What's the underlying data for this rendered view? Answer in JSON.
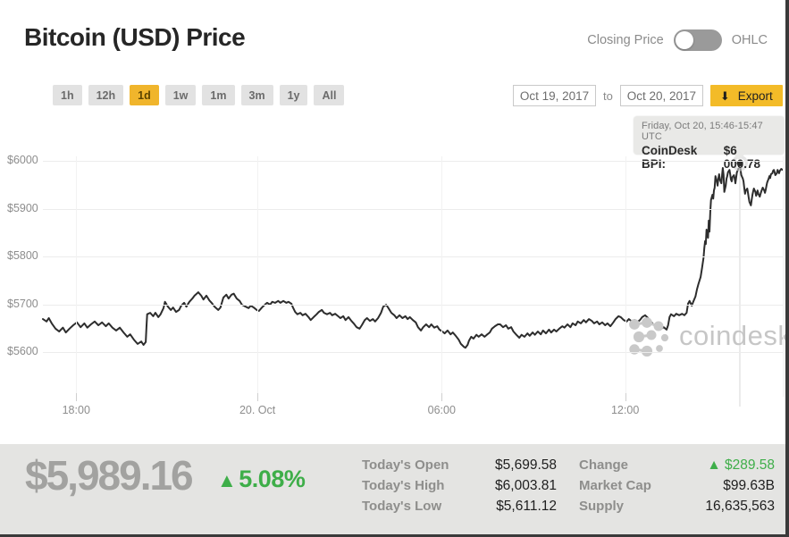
{
  "header": {
    "title": "Bitcoin (USD) Price",
    "toggle": {
      "left_label": "Closing Price",
      "right_label": "OHLC",
      "state": "left"
    }
  },
  "toolbar": {
    "ranges": [
      {
        "label": "1h",
        "active": false
      },
      {
        "label": "12h",
        "active": false
      },
      {
        "label": "1d",
        "active": true
      },
      {
        "label": "1w",
        "active": false
      },
      {
        "label": "1m",
        "active": false
      },
      {
        "label": "3m",
        "active": false
      },
      {
        "label": "1y",
        "active": false
      },
      {
        "label": "All",
        "active": false
      }
    ],
    "date_from": "Oct 19, 2017",
    "to_word": "to",
    "date_to": "Oct 20, 2017",
    "export_icon": "⬇",
    "export_label": "Export"
  },
  "tooltip": {
    "line1": "Friday, Oct 20, 15:46-15:47 UTC",
    "label": "CoinDesk BPI:",
    "value": "$6 000.78"
  },
  "watermark": {
    "text": "coindesk"
  },
  "colors": {
    "accent_yellow": "#f0b52c",
    "export_yellow": "#f3bb28",
    "green": "#3eae49",
    "line": "#2d2d2d",
    "grid": "#ececec",
    "footer_bg": "#e4e4e2",
    "muted_text": "#8d8d8d",
    "watermark": "#c6c6c6"
  },
  "chart_data": {
    "type": "line",
    "title": "Bitcoin (USD) Price",
    "series_name": "CoinDesk BPI (USD)",
    "grid": true,
    "legend": "none",
    "y_ticks": [
      6000,
      5900,
      5800,
      5700,
      5600
    ],
    "y_tick_labels": [
      "$6000",
      "$5900",
      "$5800",
      "$5700",
      "$5600"
    ],
    "ylim": [
      5506,
      6019
    ],
    "x_tick_labels": [
      "18:00",
      "20. Oct",
      "06:00",
      "12:00"
    ],
    "x_tick_pcts": [
      4.5,
      29.0,
      53.9,
      78.7
    ],
    "marker": {
      "pct": 94.2,
      "price": 5995,
      "crosshair": true
    },
    "points": [
      [
        0,
        5669
      ],
      [
        0.5,
        5664
      ],
      [
        0.8,
        5671
      ],
      [
        1.2,
        5660
      ],
      [
        1.7,
        5649
      ],
      [
        2.2,
        5643
      ],
      [
        2.7,
        5651
      ],
      [
        3.1,
        5641
      ],
      [
        3.6,
        5649
      ],
      [
        4.1,
        5656
      ],
      [
        4.6,
        5662
      ],
      [
        5.1,
        5652
      ],
      [
        5.6,
        5660
      ],
      [
        6,
        5651
      ],
      [
        6.5,
        5658
      ],
      [
        7,
        5664
      ],
      [
        7.5,
        5656
      ],
      [
        8,
        5662
      ],
      [
        8.5,
        5654
      ],
      [
        8.9,
        5660
      ],
      [
        9.4,
        5651
      ],
      [
        9.9,
        5645
      ],
      [
        10.4,
        5651
      ],
      [
        10.9,
        5641
      ],
      [
        11.4,
        5632
      ],
      [
        11.8,
        5637
      ],
      [
        12.3,
        5626
      ],
      [
        12.8,
        5617
      ],
      [
        13.3,
        5622
      ],
      [
        13.6,
        5615
      ],
      [
        13.9,
        5621
      ],
      [
        14,
        5652
      ],
      [
        14.1,
        5679
      ],
      [
        14.5,
        5682
      ],
      [
        14.9,
        5675
      ],
      [
        15.2,
        5682
      ],
      [
        15.6,
        5673
      ],
      [
        15.9,
        5679
      ],
      [
        16.3,
        5692
      ],
      [
        16.5,
        5705
      ],
      [
        16.9,
        5695
      ],
      [
        17.3,
        5688
      ],
      [
        17.6,
        5693
      ],
      [
        18,
        5684
      ],
      [
        18.4,
        5688
      ],
      [
        18.7,
        5697
      ],
      [
        19.1,
        5703
      ],
      [
        19.4,
        5695
      ],
      [
        19.8,
        5705
      ],
      [
        20.2,
        5712
      ],
      [
        20.5,
        5718
      ],
      [
        21,
        5725
      ],
      [
        21.4,
        5718
      ],
      [
        21.7,
        5710
      ],
      [
        22.1,
        5718
      ],
      [
        22.5,
        5708
      ],
      [
        22.8,
        5703
      ],
      [
        23.2,
        5695
      ],
      [
        23.7,
        5688
      ],
      [
        24,
        5693
      ],
      [
        24.4,
        5714
      ],
      [
        24.8,
        5720
      ],
      [
        25.1,
        5712
      ],
      [
        25.5,
        5720
      ],
      [
        25.8,
        5722
      ],
      [
        26.2,
        5712
      ],
      [
        26.6,
        5707
      ],
      [
        26.9,
        5699
      ],
      [
        27.4,
        5695
      ],
      [
        27.8,
        5692
      ],
      [
        28.1,
        5697
      ],
      [
        28.5,
        5693
      ],
      [
        28.9,
        5688
      ],
      [
        29.2,
        5686
      ],
      [
        29.6,
        5693
      ],
      [
        30,
        5699
      ],
      [
        30.3,
        5703
      ],
      [
        30.7,
        5699
      ],
      [
        31,
        5705
      ],
      [
        31.4,
        5703
      ],
      [
        31.8,
        5707
      ],
      [
        32.1,
        5703
      ],
      [
        32.5,
        5707
      ],
      [
        32.9,
        5703
      ],
      [
        33.2,
        5705
      ],
      [
        33.6,
        5701
      ],
      [
        33.8,
        5693
      ],
      [
        34.1,
        5684
      ],
      [
        34.4,
        5679
      ],
      [
        34.8,
        5682
      ],
      [
        35.1,
        5677
      ],
      [
        35.5,
        5680
      ],
      [
        35.9,
        5673
      ],
      [
        36.2,
        5667
      ],
      [
        36.6,
        5673
      ],
      [
        37,
        5679
      ],
      [
        37.3,
        5684
      ],
      [
        37.7,
        5688
      ],
      [
        38,
        5682
      ],
      [
        38.4,
        5679
      ],
      [
        38.8,
        5682
      ],
      [
        39.1,
        5677
      ],
      [
        39.5,
        5680
      ],
      [
        39.9,
        5675
      ],
      [
        40.2,
        5671
      ],
      [
        40.6,
        5675
      ],
      [
        40.9,
        5667
      ],
      [
        41.3,
        5673
      ],
      [
        41.7,
        5665
      ],
      [
        42,
        5660
      ],
      [
        42.4,
        5652
      ],
      [
        42.8,
        5649
      ],
      [
        43.1,
        5656
      ],
      [
        43.5,
        5667
      ],
      [
        43.8,
        5671
      ],
      [
        44.2,
        5665
      ],
      [
        44.6,
        5669
      ],
      [
        44.9,
        5664
      ],
      [
        45.3,
        5671
      ],
      [
        45.7,
        5682
      ],
      [
        46,
        5695
      ],
      [
        46.4,
        5699
      ],
      [
        46.7,
        5692
      ],
      [
        47.1,
        5682
      ],
      [
        47.5,
        5677
      ],
      [
        47.8,
        5671
      ],
      [
        48.2,
        5677
      ],
      [
        48.6,
        5671
      ],
      [
        49,
        5675
      ],
      [
        49.3,
        5669
      ],
      [
        49.6,
        5673
      ],
      [
        50,
        5667
      ],
      [
        50.4,
        5662
      ],
      [
        50.7,
        5652
      ],
      [
        51.1,
        5645
      ],
      [
        51.4,
        5652
      ],
      [
        51.8,
        5658
      ],
      [
        52.2,
        5652
      ],
      [
        52.5,
        5658
      ],
      [
        52.9,
        5651
      ],
      [
        53.3,
        5654
      ],
      [
        53.6,
        5647
      ],
      [
        54,
        5643
      ],
      [
        54.3,
        5639
      ],
      [
        54.7,
        5645
      ],
      [
        55.1,
        5637
      ],
      [
        55.4,
        5641
      ],
      [
        55.8,
        5634
      ],
      [
        56.2,
        5626
      ],
      [
        56.5,
        5617
      ],
      [
        56.9,
        5611
      ],
      [
        57.1,
        5609
      ],
      [
        57.4,
        5615
      ],
      [
        57.6,
        5624
      ],
      [
        57.9,
        5632
      ],
      [
        58.2,
        5628
      ],
      [
        58.6,
        5636
      ],
      [
        58.9,
        5632
      ],
      [
        59.3,
        5637
      ],
      [
        59.7,
        5632
      ],
      [
        60,
        5636
      ],
      [
        60.4,
        5641
      ],
      [
        60.7,
        5649
      ],
      [
        61.1,
        5654
      ],
      [
        61.5,
        5658
      ],
      [
        61.8,
        5658
      ],
      [
        62.2,
        5652
      ],
      [
        62.6,
        5656
      ],
      [
        62.9,
        5649
      ],
      [
        63.3,
        5652
      ],
      [
        63.6,
        5643
      ],
      [
        64,
        5636
      ],
      [
        64.4,
        5630
      ],
      [
        64.7,
        5636
      ],
      [
        65.1,
        5632
      ],
      [
        65.5,
        5639
      ],
      [
        65.8,
        5634
      ],
      [
        66.2,
        5641
      ],
      [
        66.5,
        5636
      ],
      [
        66.9,
        5643
      ],
      [
        67.3,
        5637
      ],
      [
        67.6,
        5645
      ],
      [
        68,
        5639
      ],
      [
        68.4,
        5647
      ],
      [
        68.7,
        5641
      ],
      [
        69.1,
        5647
      ],
      [
        69.4,
        5643
      ],
      [
        69.8,
        5649
      ],
      [
        70.2,
        5654
      ],
      [
        70.5,
        5651
      ],
      [
        70.9,
        5658
      ],
      [
        71.3,
        5652
      ],
      [
        71.6,
        5660
      ],
      [
        72,
        5656
      ],
      [
        72.3,
        5664
      ],
      [
        72.7,
        5660
      ],
      [
        73.1,
        5667
      ],
      [
        73.4,
        5662
      ],
      [
        73.8,
        5669
      ],
      [
        74.2,
        5665
      ],
      [
        74.5,
        5660
      ],
      [
        74.9,
        5664
      ],
      [
        75.2,
        5658
      ],
      [
        75.6,
        5662
      ],
      [
        76,
        5656
      ],
      [
        76.3,
        5660
      ],
      [
        76.7,
        5654
      ],
      [
        77.1,
        5662
      ],
      [
        77.4,
        5669
      ],
      [
        77.8,
        5675
      ],
      [
        78.1,
        5673
      ],
      [
        78.5,
        5667
      ],
      [
        78.9,
        5664
      ],
      [
        79.2,
        5669
      ],
      [
        79.6,
        5664
      ],
      [
        80,
        5667
      ],
      [
        80.3,
        5662
      ],
      [
        80.7,
        5667
      ],
      [
        81,
        5673
      ],
      [
        81.4,
        5677
      ],
      [
        81.8,
        5671
      ],
      [
        82.1,
        5665
      ],
      [
        82.5,
        5658
      ],
      [
        82.9,
        5652
      ],
      [
        83.2,
        5656
      ],
      [
        83.6,
        5649
      ],
      [
        83.9,
        5652
      ],
      [
        84.3,
        5647
      ],
      [
        84.5,
        5656
      ],
      [
        84.7,
        5673
      ],
      [
        84.9,
        5679
      ],
      [
        85.3,
        5675
      ],
      [
        85.6,
        5680
      ],
      [
        86,
        5677
      ],
      [
        86.4,
        5680
      ],
      [
        86.7,
        5677
      ],
      [
        87,
        5682
      ],
      [
        87.2,
        5701
      ],
      [
        87.4,
        5707
      ],
      [
        87.7,
        5697
      ],
      [
        87.9,
        5705
      ],
      [
        88.2,
        5716
      ],
      [
        88.4,
        5731
      ],
      [
        88.6,
        5742
      ],
      [
        88.9,
        5757
      ],
      [
        89.1,
        5776
      ],
      [
        89.3,
        5798
      ],
      [
        89.4,
        5817
      ],
      [
        89.5,
        5832
      ],
      [
        89.6,
        5826
      ],
      [
        89.7,
        5856
      ],
      [
        89.9,
        5839
      ],
      [
        90,
        5875
      ],
      [
        90.1,
        5852
      ],
      [
        90.2,
        5893
      ],
      [
        90.3,
        5918
      ],
      [
        90.5,
        5929
      ],
      [
        90.6,
        5921
      ],
      [
        90.7,
        5938
      ],
      [
        90.8,
        5944
      ],
      [
        90.9,
        5968
      ],
      [
        91.1,
        5957
      ],
      [
        91.2,
        5948
      ],
      [
        91.3,
        5964
      ],
      [
        91.4,
        5972
      ],
      [
        91.5,
        5961
      ],
      [
        91.7,
        5953
      ],
      [
        91.8,
        5970
      ],
      [
        91.9,
        5985
      ],
      [
        92,
        5970
      ],
      [
        92.1,
        5935
      ],
      [
        92.3,
        5948
      ],
      [
        92.4,
        5963
      ],
      [
        92.5,
        5968
      ],
      [
        92.6,
        5976
      ],
      [
        92.8,
        5981
      ],
      [
        92.9,
        5972
      ],
      [
        93,
        5961
      ],
      [
        93.1,
        5957
      ],
      [
        93.2,
        5966
      ],
      [
        93.4,
        5970
      ],
      [
        93.5,
        5963
      ],
      [
        93.6,
        5953
      ],
      [
        93.7,
        5964
      ],
      [
        93.8,
        5976
      ],
      [
        94,
        5983
      ],
      [
        94.1,
        5989
      ],
      [
        94.2,
        5995
      ],
      [
        94.3,
        5981
      ],
      [
        94.4,
        5970
      ],
      [
        94.6,
        5963
      ],
      [
        94.7,
        5957
      ],
      [
        94.8,
        5944
      ],
      [
        94.9,
        5931
      ],
      [
        95,
        5938
      ],
      [
        95.2,
        5942
      ],
      [
        95.3,
        5933
      ],
      [
        95.4,
        5923
      ],
      [
        95.5,
        5914
      ],
      [
        95.7,
        5907
      ],
      [
        95.8,
        5918
      ],
      [
        95.9,
        5929
      ],
      [
        96,
        5936
      ],
      [
        96.1,
        5942
      ],
      [
        96.3,
        5935
      ],
      [
        96.4,
        5927
      ],
      [
        96.5,
        5931
      ],
      [
        96.6,
        5938
      ],
      [
        96.7,
        5931
      ],
      [
        96.9,
        5925
      ],
      [
        97,
        5931
      ],
      [
        97.1,
        5936
      ],
      [
        97.2,
        5940
      ],
      [
        97.3,
        5944
      ],
      [
        97.5,
        5938
      ],
      [
        97.6,
        5933
      ],
      [
        97.7,
        5940
      ],
      [
        97.8,
        5948
      ],
      [
        97.9,
        5955
      ],
      [
        98.1,
        5963
      ],
      [
        98.2,
        5968
      ],
      [
        98.3,
        5964
      ],
      [
        98.4,
        5972
      ],
      [
        98.6,
        5974
      ],
      [
        98.7,
        5979
      ],
      [
        98.8,
        5981
      ],
      [
        98.9,
        5976
      ],
      [
        99,
        5970
      ],
      [
        99.2,
        5974
      ],
      [
        99.3,
        5981
      ],
      [
        99.4,
        5978
      ],
      [
        99.5,
        5974
      ],
      [
        99.6,
        5979
      ],
      [
        99.8,
        5983
      ],
      [
        100,
        5981
      ]
    ]
  },
  "footer": {
    "price": "$5,989.16",
    "change_icon": "▲",
    "change_pct": "5.08%",
    "stats_left": [
      {
        "label": "Today's Open",
        "value": "$5,699.58"
      },
      {
        "label": "Today's High",
        "value": "$6,003.81"
      },
      {
        "label": "Today's Low",
        "value": "$5,611.12"
      }
    ],
    "stats_right": [
      {
        "label": "Change",
        "value": "▲ $289.58",
        "positive": true
      },
      {
        "label": "Market Cap",
        "value": "$99.63B",
        "positive": false
      },
      {
        "label": "Supply",
        "value": "16,635,563",
        "positive": false
      }
    ]
  }
}
